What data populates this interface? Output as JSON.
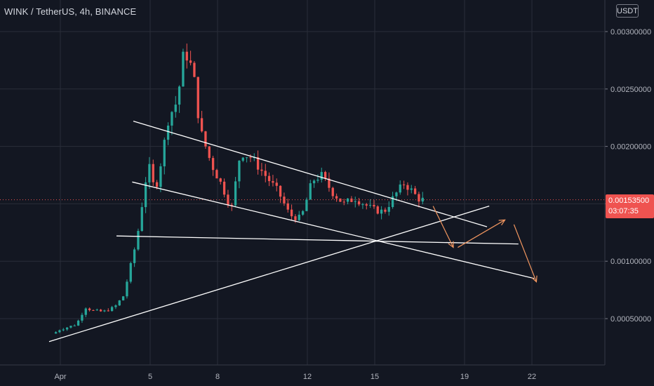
{
  "header": {
    "title": "WINK / TetherUS, 4h, BINANCE",
    "currency_button": "USDT"
  },
  "last_price": {
    "value": "0.00153500",
    "countdown": "03:07:35",
    "color": "#ef5350"
  },
  "colors": {
    "background": "#131722",
    "grid": "#2a2e39",
    "up": "#26a69a",
    "down": "#ef5350",
    "trendline": "#ffffff",
    "arrow": "#f0955f"
  },
  "chart_data": {
    "type": "candlestick",
    "symbol": "WINK / TetherUS",
    "interval": "4h",
    "exchange": "BINANCE",
    "ylim": [
      0.0001,
      0.0031
    ],
    "y_ticks": [
      "0.00050000",
      "0.00100000",
      "0.00150000",
      "0.00200000",
      "0.00250000",
      "0.00300000"
    ],
    "x_ticks": [
      "Apr",
      "5",
      "8",
      "12",
      "15",
      "19",
      "22"
    ],
    "last_price": 0.001535,
    "grid": true,
    "price_anchors": [
      [
        -0.2,
        0.00037
      ],
      [
        0.0,
        0.0004
      ],
      [
        0.8,
        0.00045
      ],
      [
        1.2,
        0.0006
      ],
      [
        1.5,
        0.00057
      ],
      [
        2.0,
        0.00056
      ],
      [
        2.5,
        0.0006
      ],
      [
        2.9,
        0.0007
      ],
      [
        3.2,
        0.00095
      ],
      [
        3.5,
        0.0012
      ],
      [
        3.8,
        0.0016
      ],
      [
        4.0,
        0.00185
      ],
      [
        4.3,
        0.0016
      ],
      [
        4.6,
        0.0019
      ],
      [
        4.9,
        0.00225
      ],
      [
        5.3,
        0.0024
      ],
      [
        5.6,
        0.00285
      ],
      [
        6.0,
        0.00265
      ],
      [
        6.3,
        0.00215
      ],
      [
        6.8,
        0.00185
      ],
      [
        7.3,
        0.00165
      ],
      [
        7.7,
        0.00145
      ],
      [
        8.1,
        0.00195
      ],
      [
        8.6,
        0.0019
      ],
      [
        9.2,
        0.00175
      ],
      [
        9.8,
        0.0016
      ],
      [
        10.3,
        0.0014
      ],
      [
        10.8,
        0.00137
      ],
      [
        11.3,
        0.0017
      ],
      [
        11.7,
        0.00175
      ],
      [
        12.2,
        0.0016
      ],
      [
        12.7,
        0.0015
      ],
      [
        13.2,
        0.00155
      ],
      [
        13.6,
        0.0015
      ],
      [
        14.0,
        0.00145
      ],
      [
        14.5,
        0.00143
      ],
      [
        15.0,
        0.00158
      ],
      [
        15.4,
        0.00168
      ],
      [
        15.7,
        0.00162
      ],
      [
        16.0,
        0.00155
      ],
      [
        16.15,
        0.001535
      ]
    ],
    "drawings": {
      "lines": [
        [
          [
            3.25,
            0.00222
          ],
          [
            19.0,
            0.0013
          ]
        ],
        [
          [
            3.2,
            0.00169
          ],
          [
            21.1,
            0.00085
          ]
        ],
        [
          [
            2.5,
            0.00122
          ],
          [
            20.4,
            0.00115
          ]
        ],
        [
          [
            -0.5,
            0.0003
          ],
          [
            19.1,
            0.00148
          ]
        ]
      ],
      "arrows": [
        [
          [
            16.6,
            0.00148
          ],
          [
            17.5,
            0.00112
          ]
        ],
        [
          [
            17.7,
            0.00112
          ],
          [
            19.8,
            0.00136
          ]
        ],
        [
          [
            20.2,
            0.00132
          ],
          [
            21.2,
            0.00082
          ]
        ]
      ]
    }
  }
}
